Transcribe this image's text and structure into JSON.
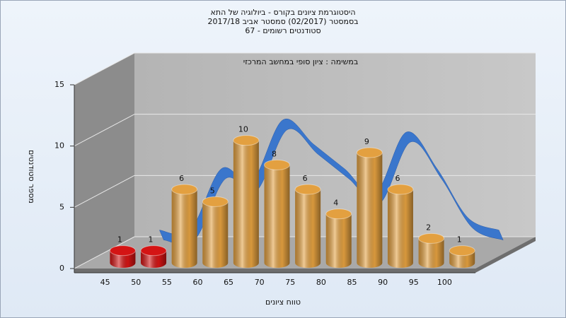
{
  "chart_data": {
    "type": "bar3d",
    "title": [
      "היסטוגרמת ציונים בקורס - ביולוגיה של התא",
      "בסמסטר  (02/2017)  סמסטר אביב 2017/18",
      "סטודנטים רשומים - 67"
    ],
    "annotation": "במשימה : ציון סופי במחשב המרכזי",
    "x_label": "טווח ציונים",
    "y_label": "מספר סטודנטים",
    "categories": [
      "45",
      "50",
      "55",
      "60",
      "65",
      "70",
      "75",
      "80",
      "85",
      "90",
      "95",
      "100"
    ],
    "values": [
      1,
      1,
      6,
      5,
      10,
      8,
      6,
      4,
      9,
      6,
      2,
      1
    ],
    "colors": [
      "#d41414",
      "#d41414",
      "#e3a040",
      "#e3a040",
      "#e3a040",
      "#e3a040",
      "#e3a040",
      "#e3a040",
      "#e3a040",
      "#e3a040",
      "#e3a040",
      "#e3a040"
    ],
    "ribbon_color": "#3a76cc",
    "ylim": [
      0,
      15
    ],
    "yticks": [
      0,
      5,
      10,
      15
    ],
    "grid": true
  }
}
